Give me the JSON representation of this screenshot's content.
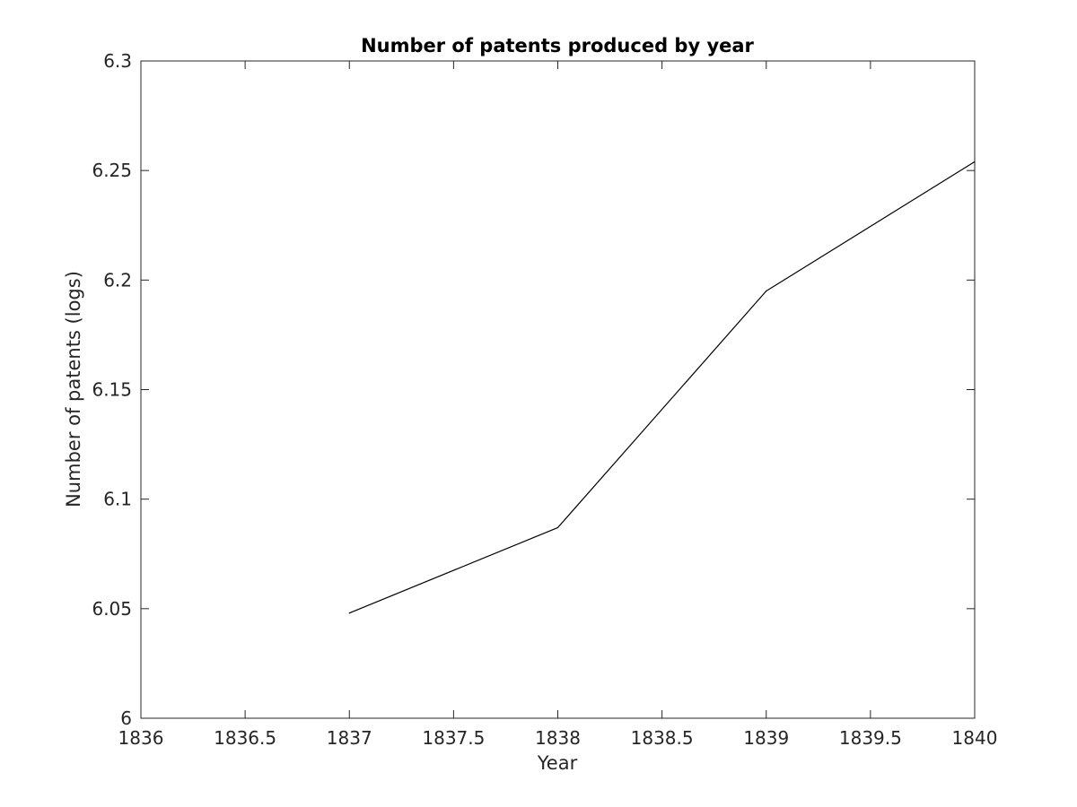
{
  "chart_data": {
    "type": "line",
    "title": "Number of patents produced by year",
    "xlabel": "Year",
    "ylabel": "Number of patents (logs)",
    "xlim": [
      1836,
      1840
    ],
    "ylim": [
      6.0,
      6.3
    ],
    "xticks": [
      1836,
      1836.5,
      1837,
      1837.5,
      1838,
      1838.5,
      1839,
      1839.5,
      1840
    ],
    "xtick_labels": [
      "1836",
      "1836.5",
      "1837",
      "1837.5",
      "1838",
      "1838.5",
      "1839",
      "1839.5",
      "1840"
    ],
    "yticks": [
      6.0,
      6.05,
      6.1,
      6.15,
      6.2,
      6.25,
      6.3
    ],
    "ytick_labels": [
      "6",
      "6.05",
      "6.1",
      "6.15",
      "6.2",
      "6.25",
      "6.3"
    ],
    "grid": false,
    "box": true,
    "series": [
      {
        "x": [
          1837,
          1838,
          1839,
          1840
        ],
        "values": [
          6.048,
          6.087,
          6.195,
          6.254
        ],
        "color": "#000000"
      }
    ]
  }
}
